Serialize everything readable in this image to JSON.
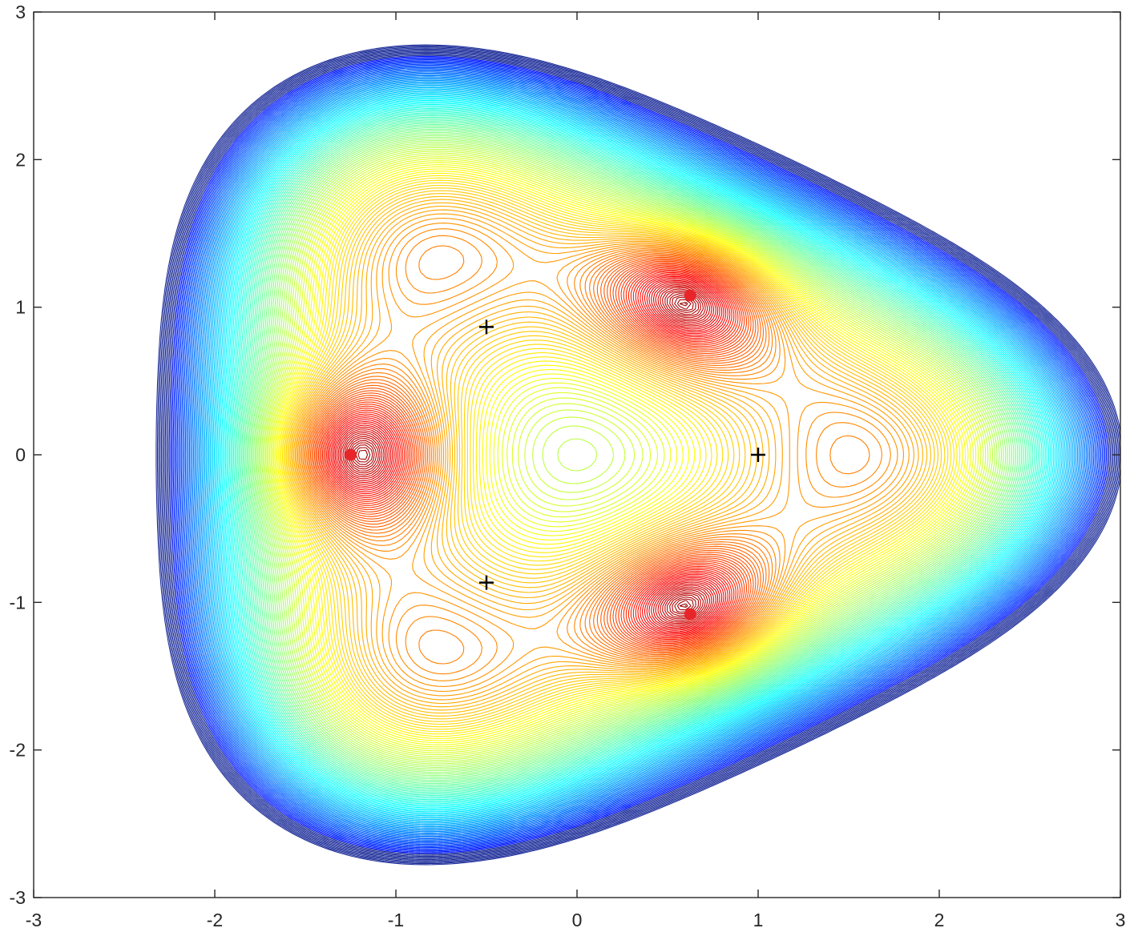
{
  "chart_data": {
    "type": "contour",
    "title": "",
    "xlabel": "",
    "ylabel": "",
    "xlim": [
      -3,
      3
    ],
    "ylim": [
      -3,
      3
    ],
    "x_ticks": [
      "-3",
      "-2",
      "-1",
      "0",
      "1",
      "2",
      "3"
    ],
    "y_ticks": [
      "3",
      "2",
      "1",
      "0",
      "-1",
      "-2",
      "-3"
    ],
    "x_tick_values": [
      -3,
      -2,
      -1,
      0,
      1,
      2,
      3
    ],
    "y_tick_values": [
      3,
      2,
      1,
      0,
      -1,
      -2,
      -3
    ],
    "grid": false,
    "colormap": "jet",
    "minima": [
      {
        "x": -1.25,
        "y": 0.0
      },
      {
        "x": 0.625,
        "y": 1.08
      },
      {
        "x": 0.625,
        "y": -1.08
      }
    ],
    "saddles": [
      {
        "x": 1.0,
        "y": 0.0
      },
      {
        "x": -0.5,
        "y": 0.866
      },
      {
        "x": -0.5,
        "y": -0.866
      }
    ],
    "center_maximum": {
      "x": 0.0,
      "y": 0.0
    },
    "minimum_marker_color": "#e8262a",
    "saddle_marker_color": "#000000",
    "outer_line_color": "#1f2f9a"
  }
}
